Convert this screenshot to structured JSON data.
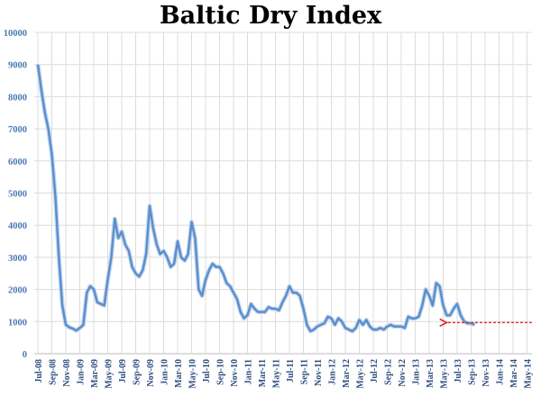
{
  "chart_data": {
    "type": "line",
    "title": "Baltic Dry Index",
    "xlabel": "",
    "ylabel": "",
    "ylim": [
      0,
      10000
    ],
    "yticks": [
      0,
      1000,
      2000,
      3000,
      4000,
      5000,
      6000,
      7000,
      8000,
      9000,
      10000
    ],
    "grid": true,
    "x_tick_labels": [
      "Jul-08",
      "Sep-08",
      "Nov-08",
      "Jan-09",
      "Mar-09",
      "May-09",
      "Jul-09",
      "Sep-09",
      "Nov-09",
      "Jan-10",
      "Mar-10",
      "May-10",
      "Jul-10",
      "Sep-10",
      "Nov-10",
      "Jan-11",
      "Mar-11",
      "May-11",
      "Jul-11",
      "Sep-11",
      "Nov-11",
      "Jan-12",
      "Mar-12",
      "May-12",
      "Jul-12",
      "Sep-12",
      "Nov-12",
      "Jan-13",
      "Mar-13",
      "May-13",
      "Jul-13",
      "Sep-13",
      "Nov-13",
      "Jan-14",
      "Mar-14",
      "May-14"
    ],
    "series": [
      {
        "name": "Baltic Dry Index",
        "color": "#5b8fcc",
        "x_start": "Jul-08",
        "frequency": "semi-monthly",
        "values": [
          9000,
          8200,
          7500,
          7000,
          6200,
          4900,
          3000,
          1500,
          900,
          820,
          780,
          720,
          800,
          900,
          1900,
          2100,
          2000,
          1600,
          1550,
          1500,
          2300,
          3000,
          4200,
          3600,
          3800,
          3400,
          3200,
          2700,
          2500,
          2400,
          2600,
          3100,
          4600,
          3900,
          3400,
          3100,
          3200,
          3000,
          2700,
          2800,
          3500,
          3000,
          2900,
          3100,
          4100,
          3600,
          2000,
          1800,
          2300,
          2600,
          2800,
          2700,
          2700,
          2500,
          2200,
          2100,
          1900,
          1700,
          1300,
          1100,
          1200,
          1550,
          1400,
          1300,
          1300,
          1300,
          1450,
          1400,
          1400,
          1350,
          1600,
          1800,
          2100,
          1900,
          1900,
          1800,
          1400,
          900,
          700,
          750,
          850,
          900,
          950,
          1150,
          1100,
          900,
          1100,
          1000,
          800,
          750,
          700,
          800,
          1050,
          900,
          1050,
          850,
          750,
          750,
          800,
          750,
          850,
          900,
          850,
          850,
          850,
          800,
          1150,
          1100,
          1100,
          1150,
          1500,
          2000,
          1800,
          1500,
          2200,
          2100,
          1500,
          1200,
          1200,
          1400,
          1550,
          1200,
          1000,
          950,
          950,
          900
        ]
      }
    ],
    "annotations": [
      {
        "type": "arrow",
        "style": "dashed",
        "color": "#e03030",
        "from_x": "Jun-14",
        "to_x": "May-13",
        "y": 800
      }
    ]
  }
}
